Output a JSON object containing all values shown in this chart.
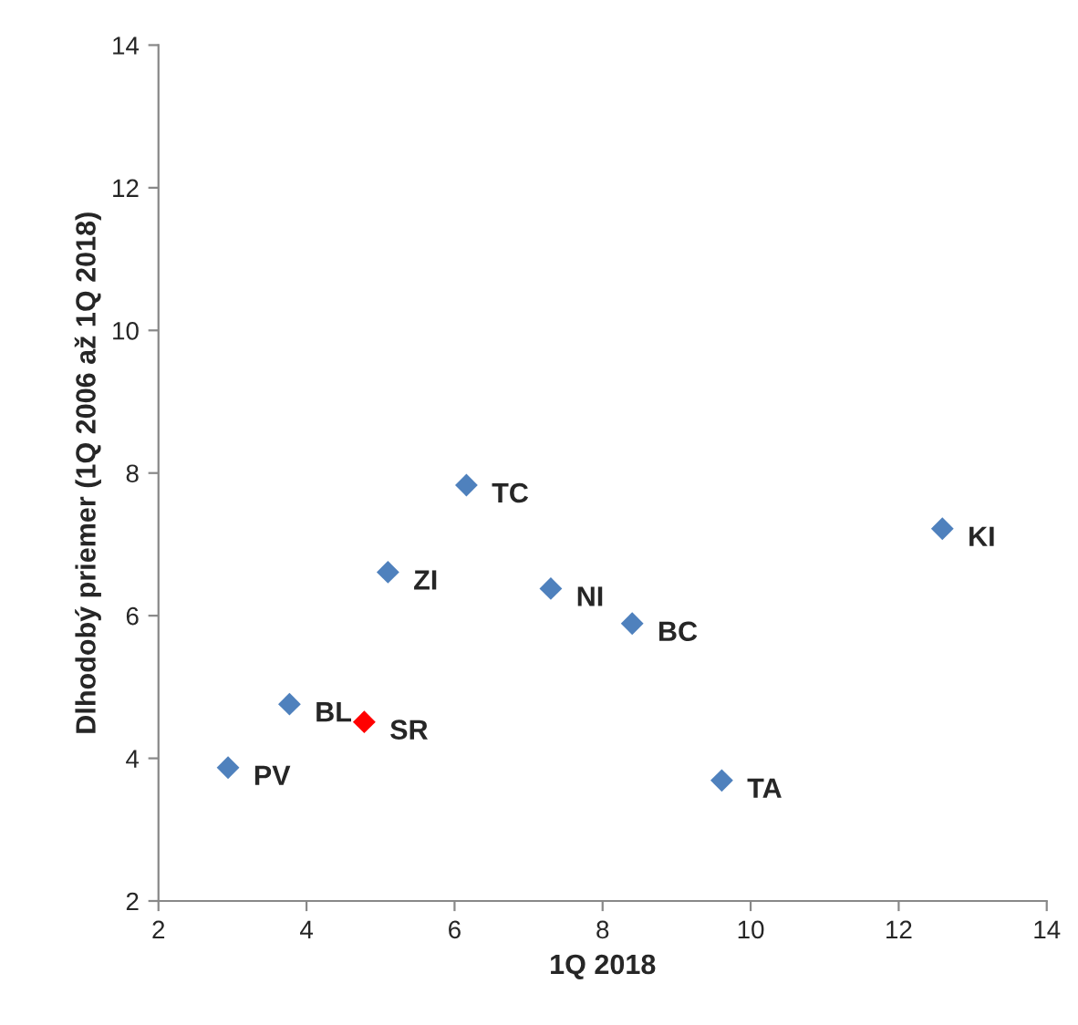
{
  "chart_data": {
    "type": "scatter",
    "xlabel": "1Q 2018",
    "ylabel": "Dlhodobý priemer (1Q 2006 až 1Q 2018)",
    "series": [
      {
        "color": "#4f81bd",
        "x": [
          2.94,
          3.77,
          5.1,
          6.16,
          7.3,
          8.4,
          9.61,
          12.59
        ],
        "values": [
          3.87,
          4.76,
          6.61,
          7.83,
          6.38,
          5.89,
          3.69,
          7.22
        ]
      },
      {
        "color": "#ff0000",
        "x": [
          4.78
        ],
        "values": [
          4.51
        ]
      }
    ],
    "annotations": [
      {
        "text": "PV",
        "x": 2.94,
        "y": 3.87
      },
      {
        "text": "BL",
        "x": 3.77,
        "y": 4.76
      },
      {
        "text": "ZI",
        "x": 5.1,
        "y": 6.61
      },
      {
        "text": "TC",
        "x": 6.16,
        "y": 7.83
      },
      {
        "text": "NI",
        "x": 7.3,
        "y": 6.38
      },
      {
        "text": "BC",
        "x": 8.4,
        "y": 5.89
      },
      {
        "text": "TA",
        "x": 9.61,
        "y": 3.69
      },
      {
        "text": "KI",
        "x": 12.59,
        "y": 7.22
      },
      {
        "text": "SR",
        "x": 4.78,
        "y": 4.51
      }
    ],
    "marker": "diamond",
    "grid": false,
    "legend": false,
    "xlim": [
      2,
      14
    ],
    "xticks": [
      2,
      4,
      6,
      8,
      10,
      12,
      14
    ],
    "ylim": [
      2,
      14
    ],
    "yticks": [
      2,
      4,
      6,
      8,
      10,
      12,
      14
    ]
  }
}
